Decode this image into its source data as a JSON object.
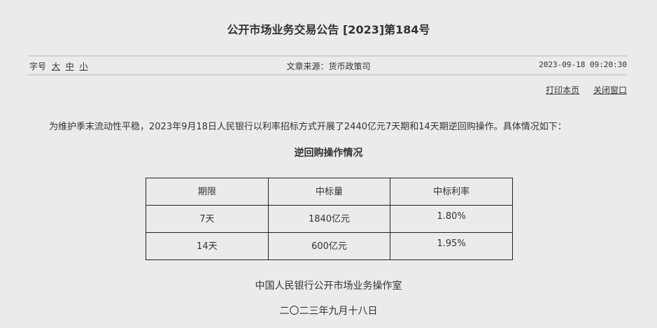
{
  "title": "公开市场业务交易公告 [2023]第184号",
  "meta": {
    "font_size_label": "字号",
    "font_sizes": [
      "大",
      "中",
      "小"
    ],
    "source": "文章来源：货币政策司",
    "datetime": "2023-09-18 09:20:30"
  },
  "actions": {
    "print": "打印本页",
    "close": "关闭窗口"
  },
  "paragraph": "为维护季末流动性平稳，2023年9月18日人民银行以利率招标方式开展了2440亿元7天期和14天期逆回购操作。具体情况如下：",
  "table": {
    "title": "逆回购操作情况",
    "headers": [
      "期限",
      "中标量",
      "中标利率"
    ],
    "rows": [
      [
        "7天",
        "1840亿元",
        "1.80%"
      ],
      [
        "14天",
        "600亿元",
        "1.95%"
      ]
    ]
  },
  "signature": {
    "org": "中国人民银行公开市场业务操作室",
    "date": "二〇二三年九月十八日"
  }
}
